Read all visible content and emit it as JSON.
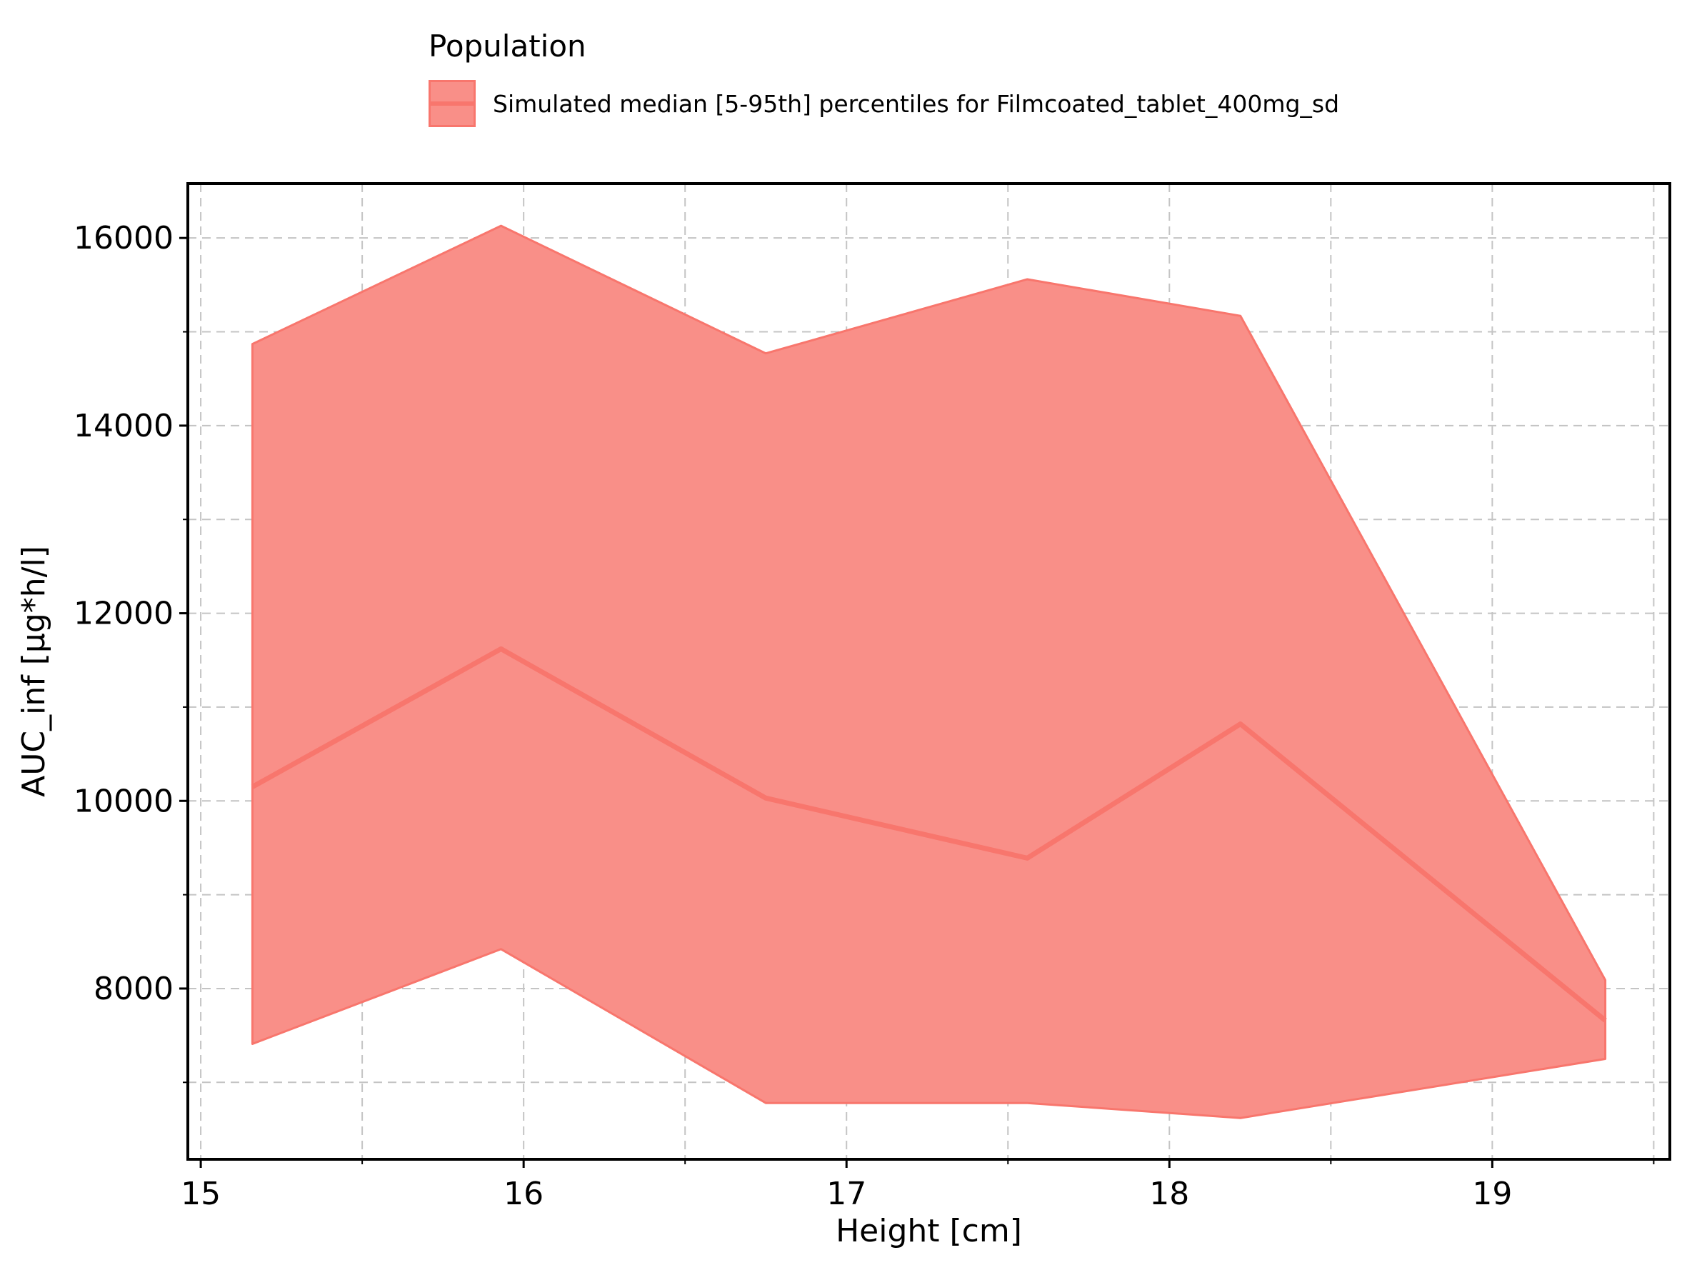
{
  "chart_data": {
    "type": "area",
    "title": "",
    "xlabel": "Height [cm]",
    "ylabel": "AUC_inf [µg*h/l]",
    "xlim": [
      14.96,
      19.55
    ],
    "ylim": [
      6180,
      16580
    ],
    "x_ticks": [
      15,
      16,
      17,
      18,
      19
    ],
    "x_minor_ticks": [
      15.5,
      16.5,
      17.5,
      18.5,
      19.5
    ],
    "y_ticks": [
      8000,
      10000,
      12000,
      14000,
      16000
    ],
    "y_minor_ticks": [
      7000,
      9000,
      11000,
      13000,
      15000
    ],
    "grid": true,
    "legend": {
      "title": "Population",
      "placement": "top",
      "entries": [
        "Simulated median [5-95th] percentiles for Filmcoated_tablet_400mg_sd"
      ]
    },
    "color": "#f8766d",
    "fill_color": "#f98f88",
    "x": [
      15.16,
      15.93,
      16.75,
      17.56,
      18.22,
      19.35
    ],
    "series": [
      {
        "name": "Simulated median [5-95th] percentiles for Filmcoated_tablet_400mg_sd",
        "median": [
          10150,
          11620,
          10030,
          9390,
          10820,
          7660
        ],
        "p5": [
          7410,
          8420,
          6780,
          6780,
          6620,
          7250
        ],
        "p95": [
          14870,
          16130,
          14770,
          15560,
          15170,
          8090
        ]
      }
    ]
  }
}
